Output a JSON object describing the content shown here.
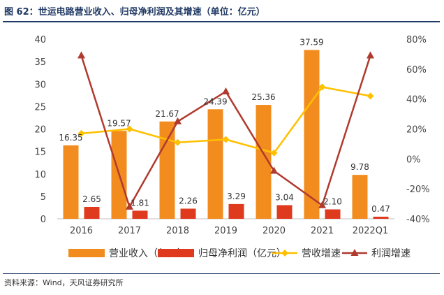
{
  "title": "图 62：世运电路营业收入、归母净利润及其增速（单位：亿元）",
  "source": "资料来源：Wind，天风证券研究所",
  "colors": {
    "revenue": "#f28c1f",
    "profit": "#e03a1e",
    "revGrowth": "#ffc000",
    "profGrowth": "#b03a2e"
  },
  "chart_data": {
    "type": "bar",
    "categories": [
      "2016",
      "2017",
      "2018",
      "2019",
      "2020",
      "2021",
      "2022Q1"
    ],
    "series": [
      {
        "name": "营业收入（亿元）",
        "type": "bar",
        "axis": "left",
        "values": [
          16.35,
          19.57,
          21.67,
          24.39,
          25.36,
          37.59,
          9.78
        ],
        "labels": [
          "16.35",
          "19.57",
          "21.67",
          "24.39",
          "25.36",
          "37.59",
          "9.78"
        ]
      },
      {
        "name": "归母净利润（亿元）",
        "type": "bar",
        "axis": "left",
        "values": [
          2.65,
          1.81,
          2.26,
          3.29,
          3.04,
          2.1,
          0.47
        ],
        "labels": [
          "2.65",
          "1.81",
          "2.26",
          "3.29",
          "3.04",
          "2.10",
          "0.47"
        ]
      },
      {
        "name": "营收增速",
        "type": "line",
        "axis": "right",
        "marker": "diamond",
        "values": [
          17,
          20,
          11,
          13,
          4,
          48,
          42
        ]
      },
      {
        "name": "利润增速",
        "type": "line",
        "axis": "right",
        "marker": "triangle",
        "values": [
          69,
          -32,
          25,
          45,
          -8,
          -31,
          69
        ]
      }
    ],
    "yleft": {
      "min": 0,
      "max": 40,
      "ticks": [
        "0",
        "5",
        "10",
        "15",
        "20",
        "25",
        "30",
        "35",
        "40"
      ]
    },
    "yright": {
      "min": -40,
      "max": 80,
      "ticks": [
        "-40%",
        "-20%",
        "0%",
        "20%",
        "40%",
        "60%",
        "80%"
      ]
    },
    "legend_position": "bottom",
    "grid": false
  }
}
